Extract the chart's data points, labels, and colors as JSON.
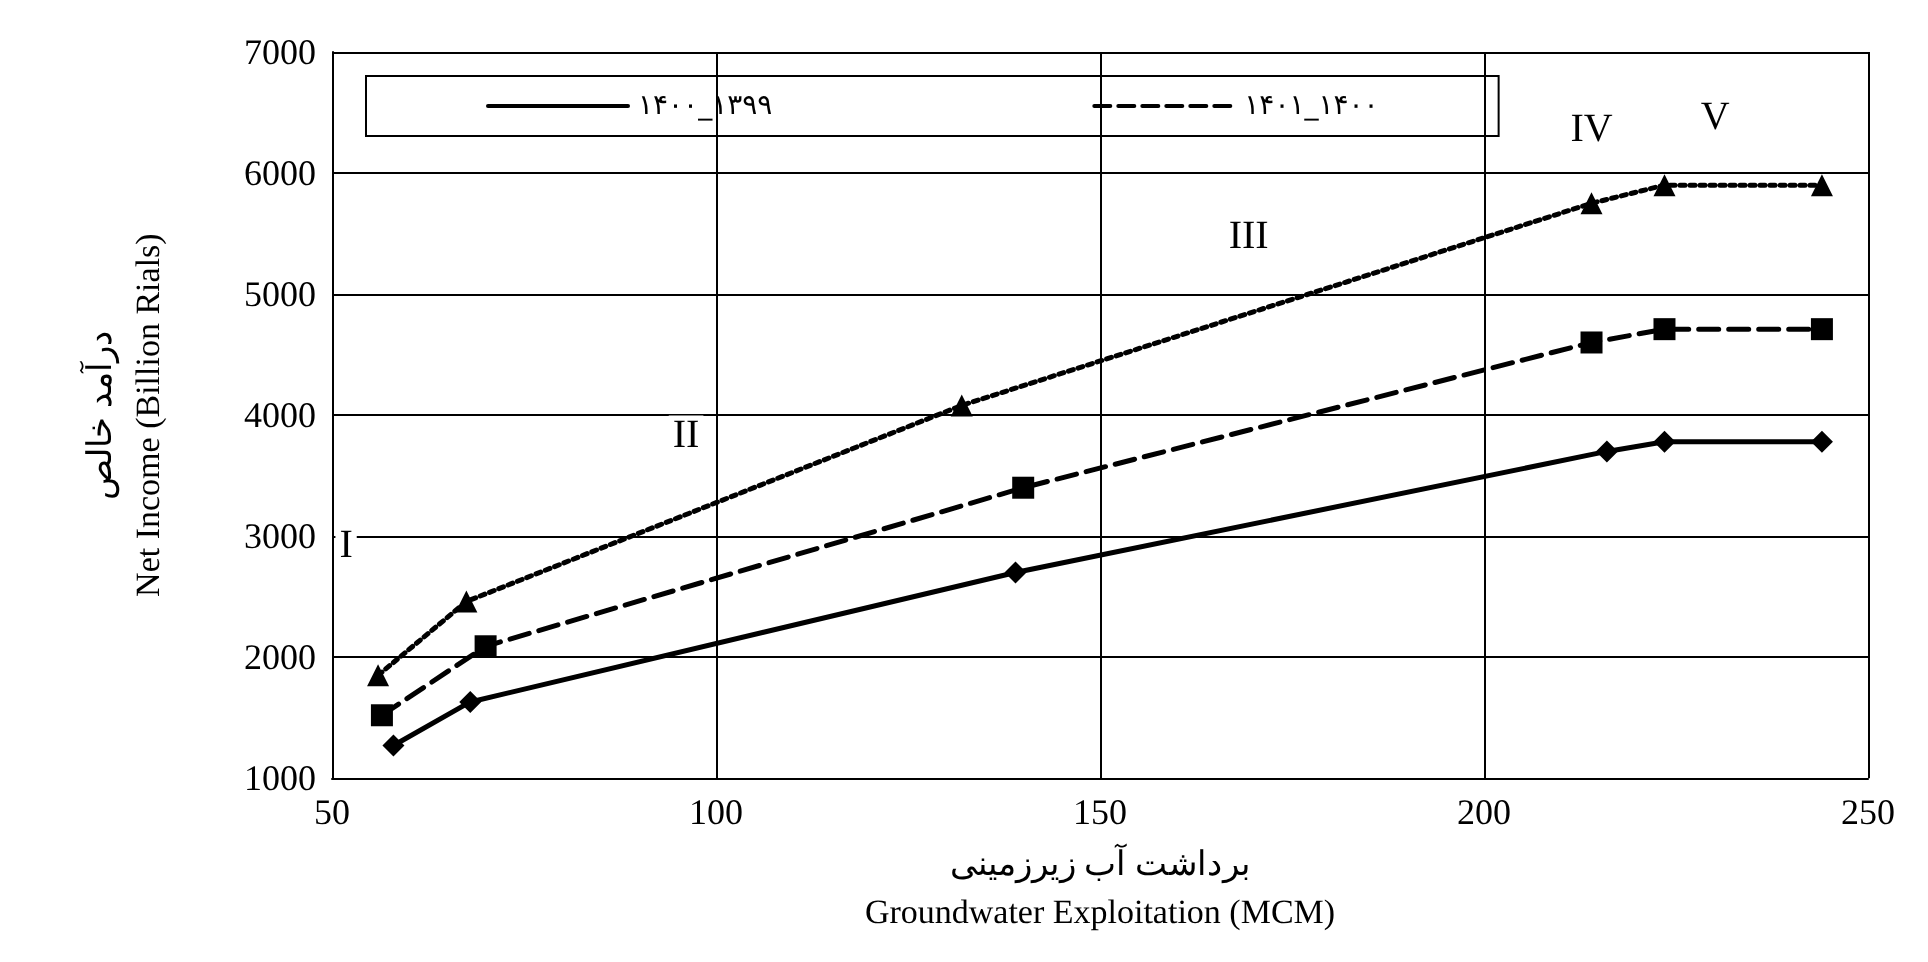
{
  "chart_data": {
    "type": "line",
    "xlabel": "برداشت آب زیرزمینی\nGroundwater Exploitation (MCM)",
    "ylabel": "درآمد خالص\nNet Income (Billion Rials)",
    "xlim": [
      50,
      250
    ],
    "xticks": [
      50,
      100,
      150,
      200,
      250
    ],
    "ylim": [
      1000,
      7000
    ],
    "yticks": [
      1000,
      2000,
      3000,
      4000,
      5000,
      6000,
      7000
    ],
    "grid": true,
    "legend": "top",
    "series": [
      {
        "name": "۱۴۰۰_۱۳۹۹",
        "color": "#000000",
        "marker": "diamond",
        "line_style": "solid",
        "x": [
          58,
          68,
          139,
          216,
          223.5,
          244
        ],
        "values": [
          1270,
          1630,
          2700,
          3700,
          3780,
          3780
        ]
      },
      {
        "name": "۱۴۰۱_۱۴۰۰",
        "color": "#000000",
        "marker": "square",
        "line_style": "dashed",
        "x": [
          56.5,
          70,
          140,
          214,
          223.5,
          244
        ],
        "values": [
          1520,
          2090,
          3400,
          4600,
          4710,
          4710
        ]
      },
      {
        "color": "#000000",
        "marker": "triangle",
        "line_style": "dotted",
        "x": [
          56,
          67.5,
          132,
          214,
          223.5,
          244
        ],
        "values": [
          1850,
          2460,
          4080,
          5750,
          5900,
          5900
        ]
      }
    ],
    "annotations": [
      "I",
      "II",
      "III",
      "IV",
      "V"
    ]
  }
}
